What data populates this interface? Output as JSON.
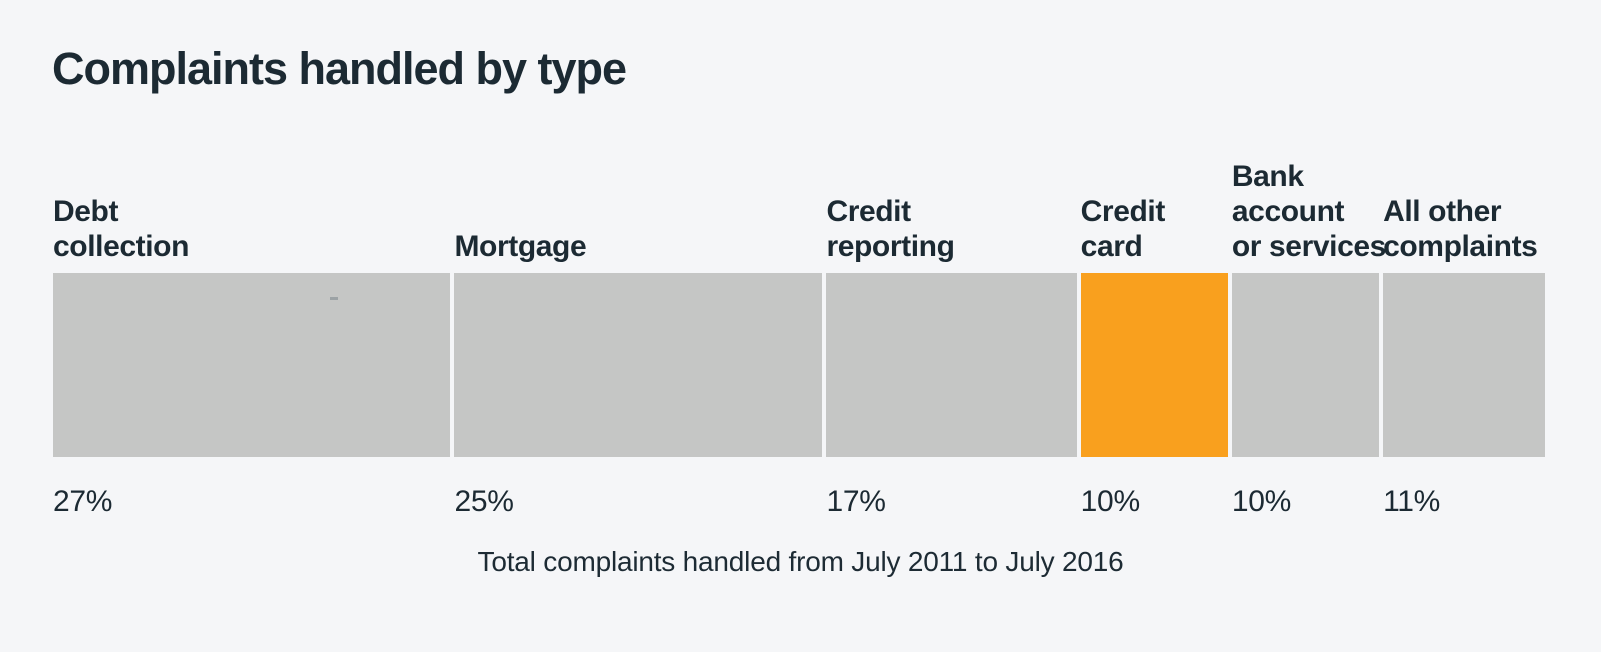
{
  "page": {
    "background": "#f5f6f8",
    "text_color": "#1c2a33"
  },
  "chart_data": {
    "type": "bar",
    "subtype": "proportional-stacked-horizontal-100pct",
    "title": "Complaints handled by type",
    "caption": "Total complaints handled from July 2011 to July 2016",
    "categories": [
      "Debt collection",
      "Mortgage",
      "Credit reporting",
      "Credit card",
      "Bank account or services",
      "All other complaints"
    ],
    "label_lines": [
      [
        "Debt",
        "collection"
      ],
      [
        "Mortgage"
      ],
      [
        "Credit",
        "reporting"
      ],
      [
        "Credit",
        "card"
      ],
      [
        "Bank",
        "account",
        "or services"
      ],
      [
        "All other",
        "complaints"
      ]
    ],
    "values": [
      27,
      25,
      17,
      10,
      10,
      11
    ],
    "value_labels": [
      "27%",
      "25%",
      "17%",
      "10%",
      "10%",
      "11%"
    ],
    "unit": "percent",
    "highlight_index": 3,
    "highlight_category": "Credit card",
    "colors": {
      "default_segment": "#c5c6c5",
      "highlight_segment": "#f9a01e",
      "text": "#1c2a33"
    },
    "layout": {
      "legend": "none",
      "grid": "off",
      "labels_position": "above-segments",
      "value_labels_position": "below-segments"
    }
  }
}
